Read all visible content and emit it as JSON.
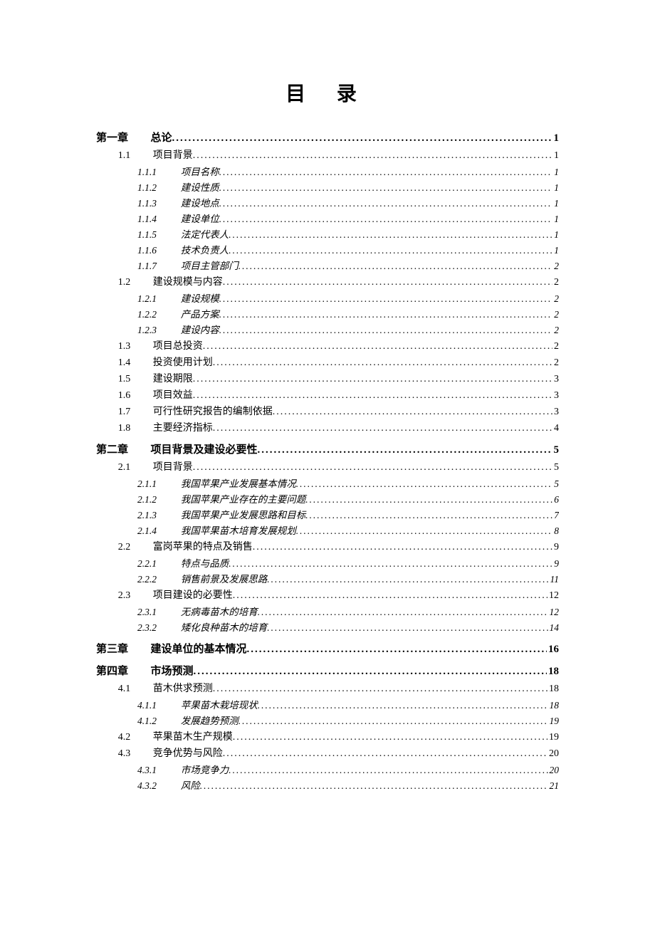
{
  "title": "目 录",
  "entries": [
    {
      "level": 1,
      "num": "第一章",
      "label": "总论",
      "page": "1"
    },
    {
      "level": 2,
      "num": "1.1",
      "label": "项目背景",
      "page": "1"
    },
    {
      "level": 3,
      "num": "1.1.1",
      "label": "项目名称",
      "page": "1"
    },
    {
      "level": 3,
      "num": "1.1.2",
      "label": "建设性质",
      "page": "1"
    },
    {
      "level": 3,
      "num": "1.1.3",
      "label": "建设地点",
      "page": "1"
    },
    {
      "level": 3,
      "num": "1.1.4",
      "label": "建设单位",
      "page": "1"
    },
    {
      "level": 3,
      "num": "1.1.5",
      "label": "法定代表人",
      "page": "1"
    },
    {
      "level": 3,
      "num": "1.1.6",
      "label": "技术负责人",
      "page": "1"
    },
    {
      "level": 3,
      "num": "1.1.7",
      "label": "项目主管部门",
      "page": "2"
    },
    {
      "level": 2,
      "num": "1.2",
      "label": "建设规模与内容",
      "page": "2"
    },
    {
      "level": 3,
      "num": "1.2.1",
      "label": "建设规模",
      "page": "2"
    },
    {
      "level": 3,
      "num": "1.2.2",
      "label": "产品方案",
      "page": "2"
    },
    {
      "level": 3,
      "num": "1.2.3",
      "label": "建设内容",
      "page": "2"
    },
    {
      "level": 2,
      "num": "1.3",
      "label": "项目总投资",
      "page": "2"
    },
    {
      "level": 2,
      "num": "1.4",
      "label": "投资使用计划",
      "page": "2"
    },
    {
      "level": 2,
      "num": "1.5",
      "label": "建设期限",
      "page": "3"
    },
    {
      "level": 2,
      "num": "1.6",
      "label": "项目效益",
      "page": "3"
    },
    {
      "level": 2,
      "num": "1.7",
      "label": "可行性研究报告的编制依据",
      "page": "3"
    },
    {
      "level": 2,
      "num": "1.8",
      "label": "主要经济指标",
      "page": "4"
    },
    {
      "level": 1,
      "num": "第二章",
      "label": "项目背景及建设必要性",
      "page": "5"
    },
    {
      "level": 2,
      "num": "2.1",
      "label": "项目背景",
      "page": "5"
    },
    {
      "level": 3,
      "num": "2.1.1",
      "label": "我国苹果产业发展基本情况",
      "page": "5"
    },
    {
      "level": 3,
      "num": "2.1.2",
      "label": "我国苹果产业存在的主要问题",
      "page": "6"
    },
    {
      "level": 3,
      "num": "2.1.3",
      "label": "我国苹果产业发展思路和目标",
      "page": "7"
    },
    {
      "level": 3,
      "num": "2.1.4",
      "label": "我国苹果苗木培育发展规划",
      "page": "8"
    },
    {
      "level": 2,
      "num": "2.2",
      "label": "富岗苹果的特点及销售",
      "page": "9"
    },
    {
      "level": 3,
      "num": "2.2.1",
      "label": "特点与品质",
      "page": "9"
    },
    {
      "level": 3,
      "num": "2.2.2",
      "label": "销售前景及发展思路",
      "page": "11"
    },
    {
      "level": 2,
      "num": "2.3",
      "label": "项目建设的必要性",
      "page": "12"
    },
    {
      "level": 3,
      "num": "2.3.1",
      "label": "无病毒苗木的培育",
      "page": "12"
    },
    {
      "level": 3,
      "num": "2.3.2",
      "label": "矮化良种苗木的培育",
      "page": "14"
    },
    {
      "level": 1,
      "num": "第三章",
      "label": "建设单位的基本情况",
      "page": "16"
    },
    {
      "level": 1,
      "num": "第四章",
      "label": "市场预测",
      "page": "18"
    },
    {
      "level": 2,
      "num": "4.1",
      "label": "苗木供求预测",
      "page": "18"
    },
    {
      "level": 3,
      "num": "4.1.1",
      "label": "苹果苗木栽培现状",
      "page": "18"
    },
    {
      "level": 3,
      "num": "4.1.2",
      "label": "发展趋势预测",
      "page": "19"
    },
    {
      "level": 2,
      "num": "4.2",
      "label": "苹果苗木生产规模",
      "page": "19"
    },
    {
      "level": 2,
      "num": "4.3",
      "label": "竞争优势与风险",
      "page": "20"
    },
    {
      "level": 3,
      "num": "4.3.1",
      "label": "市场竞争力",
      "page": "20"
    },
    {
      "level": 3,
      "num": "4.3.2",
      "label": "风险",
      "page": "21"
    }
  ]
}
